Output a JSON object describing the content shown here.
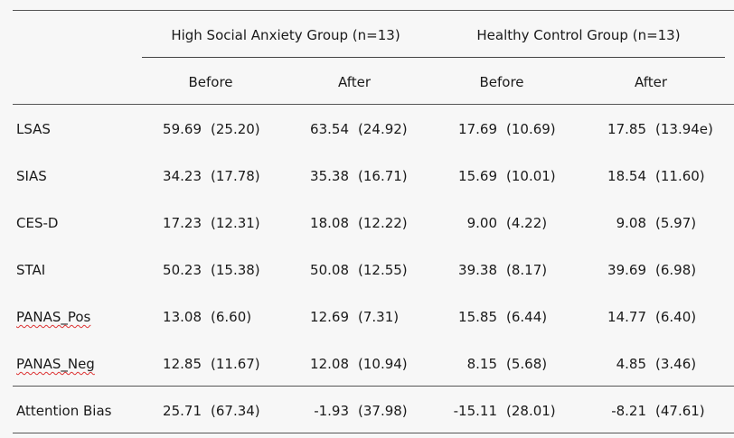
{
  "groups": [
    {
      "label": "High Social Anxiety Group (n=13)"
    },
    {
      "label": "Healthy Control Group (n=13)"
    }
  ],
  "subheaders": [
    "Before",
    "After",
    "Before",
    "After"
  ],
  "rows": [
    {
      "label": "LSAS",
      "cells": [
        [
          "59.69",
          "(25.20)"
        ],
        [
          "63.54",
          "(24.92)"
        ],
        [
          "17.69",
          "(10.69)"
        ],
        [
          "17.85",
          "(13.94e)"
        ]
      ]
    },
    {
      "label": "SIAS",
      "cells": [
        [
          "34.23",
          "(17.78)"
        ],
        [
          "35.38",
          "(16.71)"
        ],
        [
          "15.69",
          "(10.01)"
        ],
        [
          "18.54",
          "(11.60)"
        ]
      ]
    },
    {
      "label": "CES-D",
      "cells": [
        [
          "17.23",
          "(12.31)"
        ],
        [
          "18.08",
          "(12.22)"
        ],
        [
          "9.00",
          "(4.22)"
        ],
        [
          "9.08",
          "(5.97)"
        ]
      ]
    },
    {
      "label": "STAI",
      "cells": [
        [
          "50.23",
          "(15.38)"
        ],
        [
          "50.08",
          "(12.55)"
        ],
        [
          "39.38",
          "(8.17)"
        ],
        [
          "39.69",
          "(6.98)"
        ]
      ]
    },
    {
      "label": "PANAS_Pos",
      "cells": [
        [
          "13.08",
          "(6.60)"
        ],
        [
          "12.69",
          "(7.31)"
        ],
        [
          "15.85",
          "(6.44)"
        ],
        [
          "14.77",
          "(6.40)"
        ]
      ]
    },
    {
      "label": "PANAS_Neg",
      "cells": [
        [
          "12.85",
          "(11.67)"
        ],
        [
          "12.08",
          "(10.94)"
        ],
        [
          "8.15",
          "(5.68)"
        ],
        [
          "4.85",
          "(3.46)"
        ]
      ]
    },
    {
      "label": "Attention Bias",
      "cells": [
        [
          "25.71",
          "(67.34)"
        ],
        [
          "-1.93",
          "(37.98)"
        ],
        [
          "-15.11",
          "(28.01)"
        ],
        [
          "-8.21",
          "(47.61)"
        ]
      ]
    }
  ]
}
